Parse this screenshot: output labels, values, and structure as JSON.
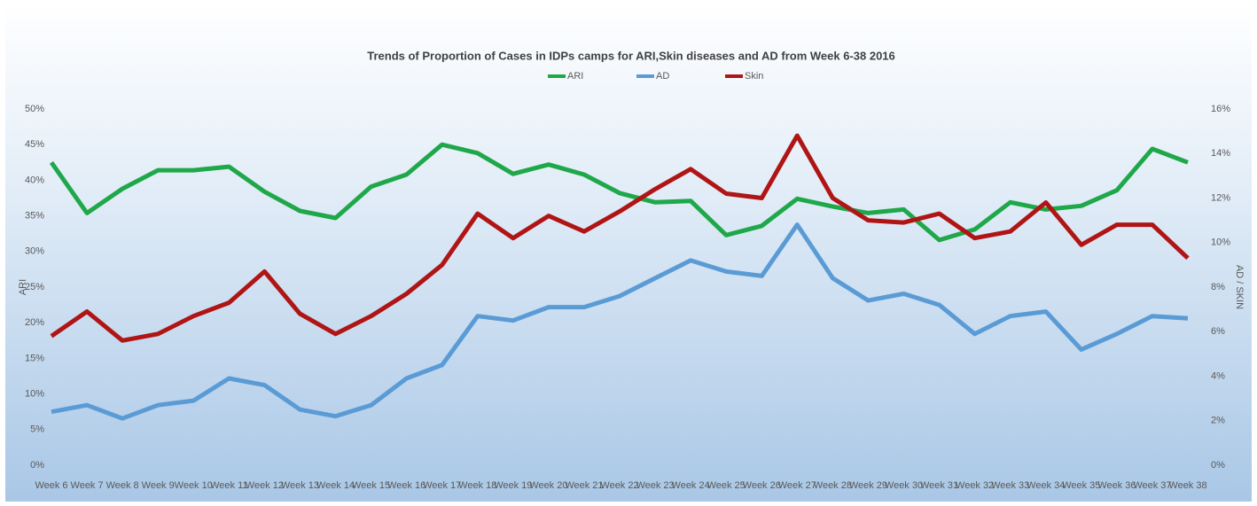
{
  "chart_data": {
    "type": "line",
    "title": "Trends of Proportion of Cases in IDPs camps for ARI,Skin diseases and AD from Week  6-38 2016",
    "y_label": "ARI",
    "y2_label": "AD / SKIN",
    "legend": "top",
    "categories": [
      "Week 6",
      "Week 7",
      "Week 8",
      "Week 9",
      "Week 10",
      "Week 11",
      "Week 12",
      "Week 13",
      "Week 14",
      "Week 15",
      "Week 16",
      "Week 17",
      "Week 18",
      "Week 19",
      "Week 20",
      "Week 21",
      "Week 22",
      "Week 23",
      "Week 24",
      "Week 25",
      "Week 26",
      "Week 27",
      "Week 28",
      "Week 29",
      "Week 30",
      "Week 31",
      "Week 32",
      "Week 33",
      "Week 34",
      "Week 35",
      "Week 36",
      "Week 37",
      "Week 38"
    ],
    "ylim": [
      0,
      50
    ],
    "yticks": [
      {
        "value": 0,
        "label": "0%"
      },
      {
        "value": 5,
        "label": "5%"
      },
      {
        "value": 10,
        "label": "10%"
      },
      {
        "value": 15,
        "label": "15%"
      },
      {
        "value": 20,
        "label": "20%"
      },
      {
        "value": 25,
        "label": "25%"
      },
      {
        "value": 30,
        "label": "30%"
      },
      {
        "value": 35,
        "label": "35%"
      },
      {
        "value": 40,
        "label": "40%"
      },
      {
        "value": 45,
        "label": "45%"
      },
      {
        "value": 50,
        "label": "50%"
      }
    ],
    "y2lim": [
      0,
      16
    ],
    "y2ticks": [
      {
        "value": 0,
        "label": "0%"
      },
      {
        "value": 2,
        "label": "2%"
      },
      {
        "value": 4,
        "label": "4%"
      },
      {
        "value": 6,
        "label": "6%"
      },
      {
        "value": 8,
        "label": "8%"
      },
      {
        "value": 10,
        "label": "10%"
      },
      {
        "value": 12,
        "label": "12%"
      },
      {
        "value": 14,
        "label": "14%"
      },
      {
        "value": 16,
        "label": "16%"
      }
    ],
    "series": [
      {
        "name": "ARI",
        "color": "#1fa84a",
        "values": [
          42.5,
          35.4,
          38.8,
          41.4,
          41.4,
          41.9,
          38.4,
          35.7,
          34.7,
          39.1,
          40.8,
          45.0,
          43.8,
          40.9,
          42.2,
          40.8,
          38.2,
          36.9,
          37.1,
          32.3,
          33.6,
          37.4,
          36.3,
          35.4,
          35.9,
          31.6,
          33.1,
          36.9,
          35.9,
          36.4,
          38.6,
          44.4,
          42.5
        ]
      },
      {
        "name": "AD",
        "color": "#5b9bd5",
        "axis": "y2",
        "values": [
          2.4,
          2.7,
          2.1,
          2.7,
          2.9,
          3.9,
          3.6,
          2.5,
          2.2,
          2.7,
          3.9,
          4.5,
          6.7,
          6.5,
          7.1,
          7.1,
          7.6,
          8.4,
          9.2,
          8.7,
          8.5,
          10.8,
          8.4,
          7.4,
          7.7,
          7.2,
          5.9,
          6.7,
          6.9,
          5.2,
          5.9,
          6.7,
          6.6
        ]
      },
      {
        "name": "Skin",
        "color": "#b01515",
        "axis": "y2",
        "values": [
          5.8,
          6.9,
          5.6,
          5.9,
          6.7,
          7.3,
          8.7,
          6.8,
          5.9,
          6.7,
          7.7,
          9.0,
          11.3,
          10.2,
          11.2,
          10.5,
          11.4,
          12.4,
          13.3,
          12.2,
          12.0,
          14.8,
          12.0,
          11.0,
          10.9,
          11.3,
          10.2,
          10.5,
          11.8,
          9.9,
          10.8,
          10.8,
          9.3
        ]
      }
    ]
  }
}
